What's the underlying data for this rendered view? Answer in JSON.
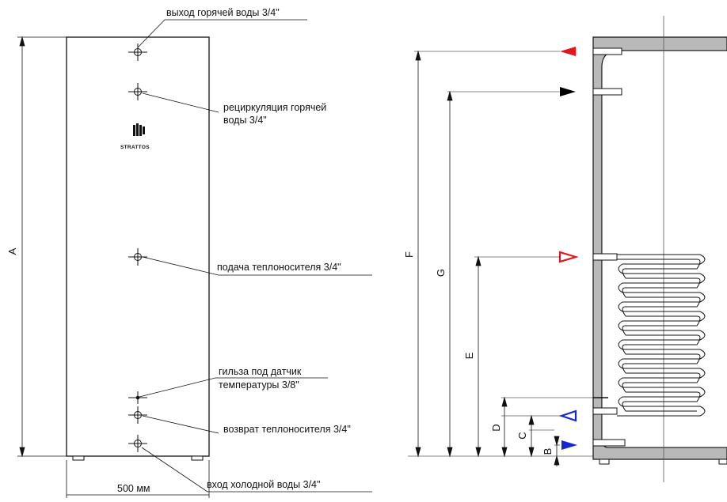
{
  "labels": {
    "hot_out": "выход горячей воды 3/4\"",
    "recirc_1": "рециркуляция горячей",
    "recirc_2": "воды 3/4\"",
    "heat_supply": "подача теплоносителя 3/4\"",
    "sensor_1": "гильза под датчик",
    "sensor_2": "температуры 3/8\"",
    "heat_return": "возврат теплоносителя 3/4\"",
    "cold_in": "вход холодной воды 3/4\"",
    "width": "500 мм"
  },
  "brand": {
    "name": "STRATTOS"
  },
  "dimensions": [
    "A",
    "B",
    "C",
    "D",
    "E",
    "F",
    "G"
  ],
  "colors": {
    "line": "#111111",
    "tank_wall": "#b9b9b9",
    "hot": "#e8141b",
    "cold": "#1428d2",
    "black_arrow": "#000000"
  }
}
